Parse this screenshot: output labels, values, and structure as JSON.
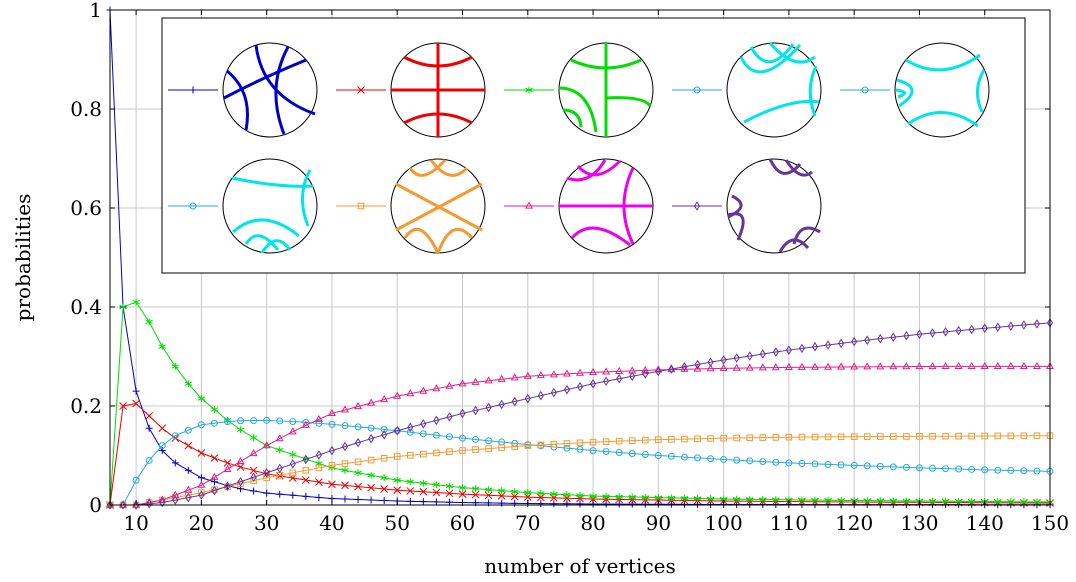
{
  "chart_data": {
    "type": "line",
    "title": "",
    "xlabel": "number of vertices",
    "ylabel": "probabilities",
    "xlim": [
      6,
      150
    ],
    "ylim": [
      0,
      1
    ],
    "xticks": [
      10,
      20,
      30,
      40,
      50,
      60,
      70,
      80,
      90,
      100,
      110,
      120,
      130,
      140,
      150
    ],
    "yticks": [
      0,
      0.2,
      0.4,
      0.6,
      0.8,
      1
    ],
    "ytick_labels": [
      "0",
      "0.2",
      "0.4",
      "0.6",
      "0.8",
      "1"
    ],
    "grid": true,
    "legend": "top, inside plot, 5 columns; each entry is a line sample followed by a hyperbolic disc pattern drawing",
    "series": [
      {
        "color": "#0000cc",
        "marker": "plus",
        "points": [
          [
            6,
            1.0
          ],
          [
            8,
            0.4
          ],
          [
            10,
            0.23
          ],
          [
            12,
            0.155
          ],
          [
            14,
            0.11
          ],
          [
            16,
            0.085
          ],
          [
            20,
            0.055
          ],
          [
            25,
            0.035
          ],
          [
            30,
            0.024
          ],
          [
            40,
            0.013
          ],
          [
            50,
            0.008
          ],
          [
            60,
            0.005
          ],
          [
            70,
            0.003
          ],
          [
            80,
            0.002
          ],
          [
            100,
            0.001
          ],
          [
            120,
            0.0008
          ],
          [
            150,
            0.0005
          ]
        ]
      },
      {
        "color": "#ee0000",
        "marker": "cross",
        "points": [
          [
            6,
            0
          ],
          [
            8,
            0.2
          ],
          [
            10,
            0.205
          ],
          [
            12,
            0.18
          ],
          [
            14,
            0.155
          ],
          [
            16,
            0.135
          ],
          [
            20,
            0.105
          ],
          [
            25,
            0.08
          ],
          [
            30,
            0.063
          ],
          [
            40,
            0.042
          ],
          [
            50,
            0.03
          ],
          [
            60,
            0.022
          ],
          [
            70,
            0.016
          ],
          [
            80,
            0.012
          ],
          [
            100,
            0.008
          ],
          [
            120,
            0.006
          ],
          [
            150,
            0.004
          ]
        ]
      },
      {
        "color": "#00dd00",
        "marker": "star",
        "points": [
          [
            6,
            0
          ],
          [
            8,
            0.4
          ],
          [
            10,
            0.41
          ],
          [
            12,
            0.37
          ],
          [
            14,
            0.32
          ],
          [
            16,
            0.28
          ],
          [
            18,
            0.245
          ],
          [
            20,
            0.215
          ],
          [
            25,
            0.16
          ],
          [
            30,
            0.12
          ],
          [
            40,
            0.075
          ],
          [
            50,
            0.05
          ],
          [
            60,
            0.035
          ],
          [
            70,
            0.025
          ],
          [
            80,
            0.018
          ],
          [
            100,
            0.012
          ],
          [
            120,
            0.009
          ],
          [
            150,
            0.006
          ]
        ]
      },
      {
        "color": "#22aadd",
        "marker": "circle",
        "points": [
          [
            6,
            0
          ],
          [
            8,
            0
          ],
          [
            10,
            0.05
          ],
          [
            12,
            0.09
          ],
          [
            14,
            0.12
          ],
          [
            16,
            0.14
          ],
          [
            20,
            0.162
          ],
          [
            25,
            0.17
          ],
          [
            30,
            0.171
          ],
          [
            35,
            0.168
          ],
          [
            40,
            0.163
          ],
          [
            50,
            0.15
          ],
          [
            60,
            0.135
          ],
          [
            70,
            0.122
          ],
          [
            80,
            0.11
          ],
          [
            90,
            0.1
          ],
          [
            100,
            0.092
          ],
          [
            110,
            0.085
          ],
          [
            120,
            0.08
          ],
          [
            130,
            0.075
          ],
          [
            140,
            0.071
          ],
          [
            150,
            0.068
          ]
        ]
      },
      {
        "color": "#f39a30",
        "marker": "square",
        "points": [
          [
            6,
            0
          ],
          [
            8,
            0
          ],
          [
            10,
            0
          ],
          [
            14,
            0.01
          ],
          [
            20,
            0.025
          ],
          [
            25,
            0.04
          ],
          [
            30,
            0.055
          ],
          [
            40,
            0.08
          ],
          [
            50,
            0.098
          ],
          [
            60,
            0.11
          ],
          [
            70,
            0.12
          ],
          [
            80,
            0.127
          ],
          [
            90,
            0.132
          ],
          [
            100,
            0.135
          ],
          [
            110,
            0.137
          ],
          [
            120,
            0.138
          ],
          [
            135,
            0.139
          ],
          [
            150,
            0.14
          ]
        ]
      },
      {
        "color": "#e0208c",
        "marker": "triangle",
        "points": [
          [
            6,
            0
          ],
          [
            8,
            0
          ],
          [
            10,
            0
          ],
          [
            14,
            0.01
          ],
          [
            20,
            0.04
          ],
          [
            25,
            0.08
          ],
          [
            30,
            0.12
          ],
          [
            35,
            0.155
          ],
          [
            40,
            0.185
          ],
          [
            50,
            0.22
          ],
          [
            60,
            0.245
          ],
          [
            70,
            0.26
          ],
          [
            80,
            0.268
          ],
          [
            90,
            0.273
          ],
          [
            100,
            0.276
          ],
          [
            110,
            0.278
          ],
          [
            120,
            0.279
          ],
          [
            135,
            0.28
          ],
          [
            150,
            0.28
          ]
        ]
      },
      {
        "color": "#663399",
        "marker": "diamond",
        "points": [
          [
            6,
            0
          ],
          [
            8,
            0
          ],
          [
            10,
            0
          ],
          [
            14,
            0.005
          ],
          [
            20,
            0.02
          ],
          [
            30,
            0.065
          ],
          [
            40,
            0.11
          ],
          [
            50,
            0.15
          ],
          [
            60,
            0.185
          ],
          [
            70,
            0.215
          ],
          [
            80,
            0.245
          ],
          [
            90,
            0.27
          ],
          [
            100,
            0.293
          ],
          [
            110,
            0.313
          ],
          [
            120,
            0.33
          ],
          [
            130,
            0.345
          ],
          [
            140,
            0.357
          ],
          [
            150,
            0.368
          ]
        ]
      }
    ],
    "legend_entries": [
      {
        "color": "#0000cc",
        "marker": "plus"
      },
      {
        "color": "#ee0000",
        "marker": "cross"
      },
      {
        "color": "#00dd00",
        "marker": "star"
      },
      {
        "color": "#22aadd",
        "marker": "circle"
      },
      {
        "color": "#22aadd",
        "marker": "circle"
      },
      {
        "color": "#22aadd",
        "marker": "circle"
      },
      {
        "color": "#f39a30",
        "marker": "square"
      },
      {
        "color": "#e0208c",
        "marker": "triangle"
      },
      {
        "color": "#663399",
        "marker": "diamond"
      }
    ]
  }
}
